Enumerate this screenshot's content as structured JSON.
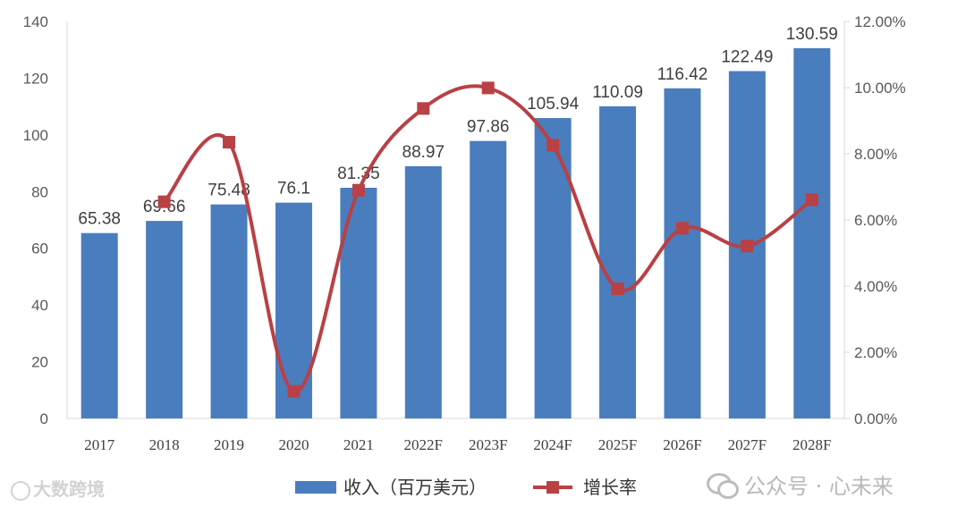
{
  "chart_data": {
    "type": "bar+line",
    "categories": [
      "2017",
      "2018",
      "2019",
      "2020",
      "2021",
      "2022F",
      "2023F",
      "2024F",
      "2025F",
      "2026F",
      "2027F",
      "2028F"
    ],
    "series": [
      {
        "name": "收入（百万美元）",
        "type": "bar",
        "axis": "left",
        "color": "#4a7dbd",
        "values": [
          65.38,
          69.66,
          75.48,
          76.1,
          81.35,
          88.97,
          97.86,
          105.94,
          110.09,
          116.42,
          122.49,
          130.59
        ],
        "labels": [
          "65.38",
          "69.66",
          "75.48",
          "76.1",
          "81.35",
          "88.97",
          "97.86",
          "105.94",
          "110.09",
          "116.42",
          "122.49",
          "130.59"
        ]
      },
      {
        "name": "增长率",
        "type": "line",
        "axis": "right",
        "color": "#b94045",
        "points": [
          {
            "x": "2018",
            "y": 6.55
          },
          {
            "x": "2019",
            "y": 8.35
          },
          {
            "x": "2020",
            "y": 0.82
          },
          {
            "x": "2021",
            "y": 6.9
          },
          {
            "x": "2022F",
            "y": 9.37
          },
          {
            "x": "2023F",
            "y": 9.99
          },
          {
            "x": "2024F",
            "y": 8.26
          },
          {
            "x": "2025F",
            "y": 3.92
          },
          {
            "x": "2026F",
            "y": 5.75
          },
          {
            "x": "2027F",
            "y": 5.21
          },
          {
            "x": "2028F",
            "y": 6.61
          }
        ]
      }
    ],
    "y_left": {
      "range": [
        0,
        140
      ],
      "ticks": [
        "0",
        "20",
        "40",
        "60",
        "80",
        "100",
        "120",
        "140"
      ]
    },
    "y_right": {
      "range": [
        0,
        12
      ],
      "ticks": [
        "0.00%",
        "2.00%",
        "4.00%",
        "6.00%",
        "8.00%",
        "10.00%",
        "12.00%"
      ]
    },
    "grid": false,
    "legend_position": "bottom"
  },
  "watermarks": {
    "left": "大数跨境",
    "right": "公众号 · 心未来"
  }
}
